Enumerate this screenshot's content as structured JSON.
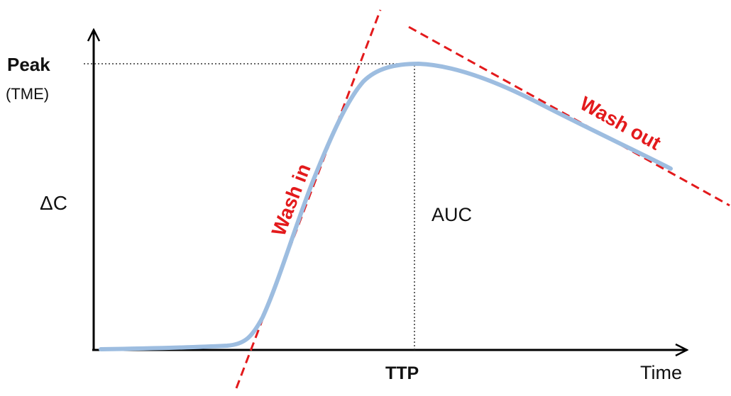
{
  "labels": {
    "peak": "Peak",
    "peak_sub": "(TME)",
    "y_axis": "ΔC",
    "auc": "AUC",
    "ttp": "TTP",
    "x_axis": "Time",
    "wash_in": "Wash in",
    "wash_out": "Wash out"
  },
  "colors": {
    "curve": "#9dbde0",
    "tangent": "#e31a1c",
    "axis": "#000000",
    "guide": "#333333"
  }
}
